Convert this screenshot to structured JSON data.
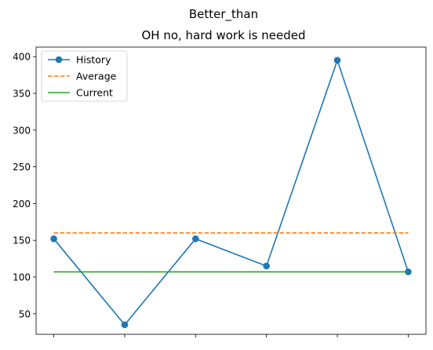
{
  "chart_data": {
    "type": "line",
    "suptitle": "Better_than",
    "title": "OH no, hard work is needed",
    "xlabel": "",
    "ylabel": "",
    "x": [
      0,
      1,
      2,
      3,
      4,
      5
    ],
    "xlim": [
      -0.25,
      5.25
    ],
    "ylim": [
      22,
      413
    ],
    "yticks": [
      50,
      100,
      150,
      200,
      250,
      300,
      350,
      400
    ],
    "xtick_labels_visible": false,
    "grid": false,
    "legend_position": "top-left",
    "series": [
      {
        "name": "History",
        "kind": "line-marker",
        "color": "#1f77b4",
        "values": [
          152,
          35,
          152,
          115,
          395,
          107
        ]
      },
      {
        "name": "Average",
        "kind": "dashed",
        "color": "#ff7f0e",
        "values": [
          160,
          160,
          160,
          160,
          160,
          160
        ]
      },
      {
        "name": "Current",
        "kind": "solid",
        "color": "#2ca02c",
        "values": [
          107,
          107,
          107,
          107,
          107,
          107
        ]
      }
    ]
  }
}
